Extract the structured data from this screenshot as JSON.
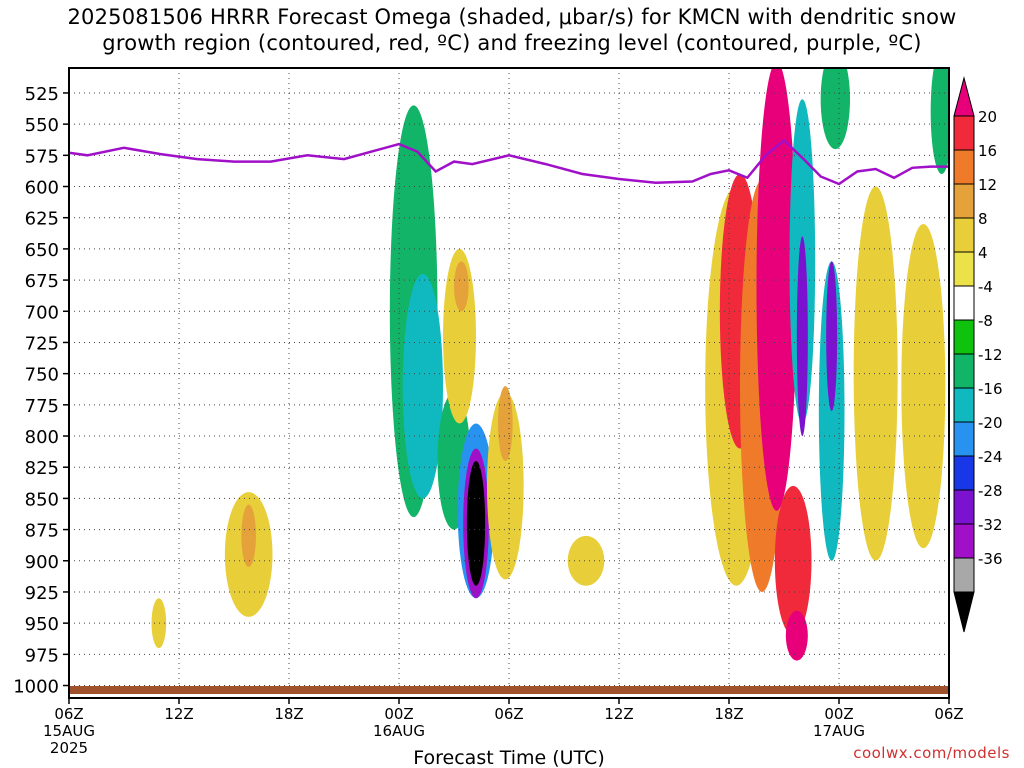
{
  "title": {
    "line1": "2025081506 HRRR Forecast Omega (shaded, μbar/s) for KMCN with dendritic snow",
    "line2": "growth region (contoured, red, ºC) and freezing level (contoured, purple, ºC)"
  },
  "credit": "coolwx.com/models",
  "chart_data": {
    "type": "heatmap",
    "xlabel": "Forecast Time (UTC)",
    "x_ticks": [
      "06Z",
      "12Z",
      "18Z",
      "00Z",
      "06Z",
      "12Z",
      "18Z",
      "00Z",
      "06Z"
    ],
    "x_hours": [
      0,
      6,
      12,
      18,
      24,
      30,
      36,
      42,
      48
    ],
    "x_date_labels": [
      {
        "hour": 0,
        "lines": [
          "15AUG",
          "2025"
        ]
      },
      {
        "hour": 18,
        "lines": [
          "16AUG"
        ]
      },
      {
        "hour": 42,
        "lines": [
          "17AUG"
        ]
      }
    ],
    "y_ticks": [
      525,
      550,
      575,
      600,
      625,
      650,
      675,
      700,
      725,
      750,
      775,
      800,
      825,
      850,
      875,
      900,
      925,
      950,
      975,
      1000
    ],
    "ylim": [
      505,
      1010
    ],
    "grid": true,
    "colorbar": {
      "labels": [
        "20",
        "16",
        "12",
        "8",
        "4",
        "-4",
        "-8",
        "-12",
        "-16",
        "-20",
        "-24",
        "-28",
        "-32",
        "-36"
      ],
      "colors": [
        "#e8007a",
        "#f02a3a",
        "#ee7a2a",
        "#e6a23a",
        "#e8cf3a",
        "#ebe24a",
        "#ffffff",
        "#0ec20e",
        "#12b468",
        "#10b8c0",
        "#2892f0",
        "#1838e8",
        "#7a12d0",
        "#a010c8",
        "#a8a8a8",
        "#000000"
      ]
    },
    "freezing_level": {
      "color": "#a010c8",
      "hours": [
        0,
        1,
        3,
        5,
        7,
        9,
        11,
        13,
        15,
        17,
        18,
        19,
        20,
        21,
        22,
        24,
        26,
        28,
        30,
        32,
        34,
        35,
        36,
        37,
        38,
        39,
        40,
        41,
        42,
        43,
        44,
        45,
        46,
        47,
        48
      ],
      "pressure": [
        573,
        575,
        569,
        574,
        578,
        580,
        580,
        575,
        578,
        570,
        566,
        572,
        588,
        580,
        582,
        575,
        582,
        590,
        594,
        597,
        596,
        590,
        587,
        593,
        575,
        563,
        577,
        592,
        598,
        588,
        586,
        593,
        585,
        584,
        584
      ]
    },
    "omega_cells": [
      {
        "hour": 18.8,
        "p": 700,
        "rx": 1.3,
        "ry": 330,
        "value": -8
      },
      {
        "hour": 19.3,
        "p": 760,
        "rx": 1.1,
        "ry": 180,
        "value": -12
      },
      {
        "hour": 21.0,
        "p": 820,
        "rx": 0.9,
        "ry": 110,
        "value": -10
      },
      {
        "hour": 22.2,
        "p": 860,
        "rx": 1.0,
        "ry": 140,
        "value": -16
      },
      {
        "hour": 22.2,
        "p": 870,
        "rx": 0.7,
        "ry": 120,
        "value": -28
      },
      {
        "hour": 22.2,
        "p": 870,
        "rx": 0.5,
        "ry": 100,
        "value": -36
      },
      {
        "hour": 21.3,
        "p": 720,
        "rx": 0.9,
        "ry": 140,
        "value": 6
      },
      {
        "hour": 21.4,
        "p": 680,
        "rx": 0.4,
        "ry": 40,
        "value": 10
      },
      {
        "hour": 23.8,
        "p": 840,
        "rx": 1.0,
        "ry": 150,
        "value": 6
      },
      {
        "hour": 23.8,
        "p": 790,
        "rx": 0.4,
        "ry": 60,
        "value": 10
      },
      {
        "hour": 9.8,
        "p": 895,
        "rx": 1.3,
        "ry": 100,
        "value": 6
      },
      {
        "hour": 9.8,
        "p": 880,
        "rx": 0.4,
        "ry": 50,
        "value": 10
      },
      {
        "hour": 4.9,
        "p": 950,
        "rx": 0.4,
        "ry": 40,
        "value": 6
      },
      {
        "hour": 28.2,
        "p": 900,
        "rx": 1.0,
        "ry": 40,
        "value": 6
      },
      {
        "hour": 36.4,
        "p": 760,
        "rx": 1.7,
        "ry": 320,
        "value": 6
      },
      {
        "hour": 36.6,
        "p": 700,
        "rx": 1.1,
        "ry": 220,
        "value": 16
      },
      {
        "hour": 37.8,
        "p": 760,
        "rx": 1.2,
        "ry": 330,
        "value": 12
      },
      {
        "hour": 38.6,
        "p": 680,
        "rx": 1.1,
        "ry": 360,
        "value": 20
      },
      {
        "hour": 39.5,
        "p": 900,
        "rx": 1.0,
        "ry": 120,
        "value": 16
      },
      {
        "hour": 39.7,
        "p": 960,
        "rx": 0.6,
        "ry": 40,
        "value": 20
      },
      {
        "hour": 40.0,
        "p": 660,
        "rx": 0.7,
        "ry": 260,
        "value": -12
      },
      {
        "hour": 40.0,
        "p": 720,
        "rx": 0.3,
        "ry": 160,
        "value": -24
      },
      {
        "hour": 41.6,
        "p": 780,
        "rx": 0.7,
        "ry": 240,
        "value": -12
      },
      {
        "hour": 41.6,
        "p": 720,
        "rx": 0.3,
        "ry": 120,
        "value": -24
      },
      {
        "hour": 41.8,
        "p": 530,
        "rx": 0.8,
        "ry": 80,
        "value": -8
      },
      {
        "hour": 44.0,
        "p": 750,
        "rx": 1.2,
        "ry": 300,
        "value": 6
      },
      {
        "hour": 46.6,
        "p": 760,
        "rx": 1.2,
        "ry": 260,
        "value": 6
      },
      {
        "hour": 47.6,
        "p": 540,
        "rx": 0.6,
        "ry": 100,
        "value": -8
      }
    ]
  }
}
